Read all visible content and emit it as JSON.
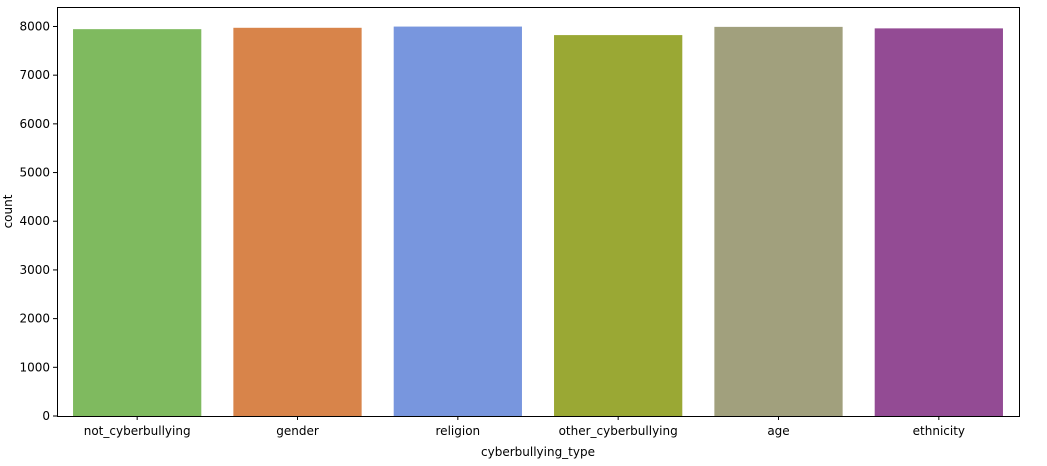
{
  "chart_data": {
    "type": "bar",
    "title": "",
    "xlabel": "cyberbullying_type",
    "ylabel": "count",
    "categories": [
      "not_cyberbullying",
      "gender",
      "religion",
      "other_cyberbullying",
      "age",
      "ethnicity"
    ],
    "values": [
      7945,
      7973,
      7998,
      7823,
      7992,
      7961
    ],
    "colors": [
      "#7fba5f",
      "#d8844a",
      "#7896de",
      "#9aa834",
      "#a1a07d",
      "#934b94"
    ],
    "ylim": [
      0,
      8400
    ],
    "yticks": [
      0,
      1000,
      2000,
      3000,
      4000,
      5000,
      6000,
      7000,
      8000
    ],
    "grid": false,
    "legend": "none"
  }
}
